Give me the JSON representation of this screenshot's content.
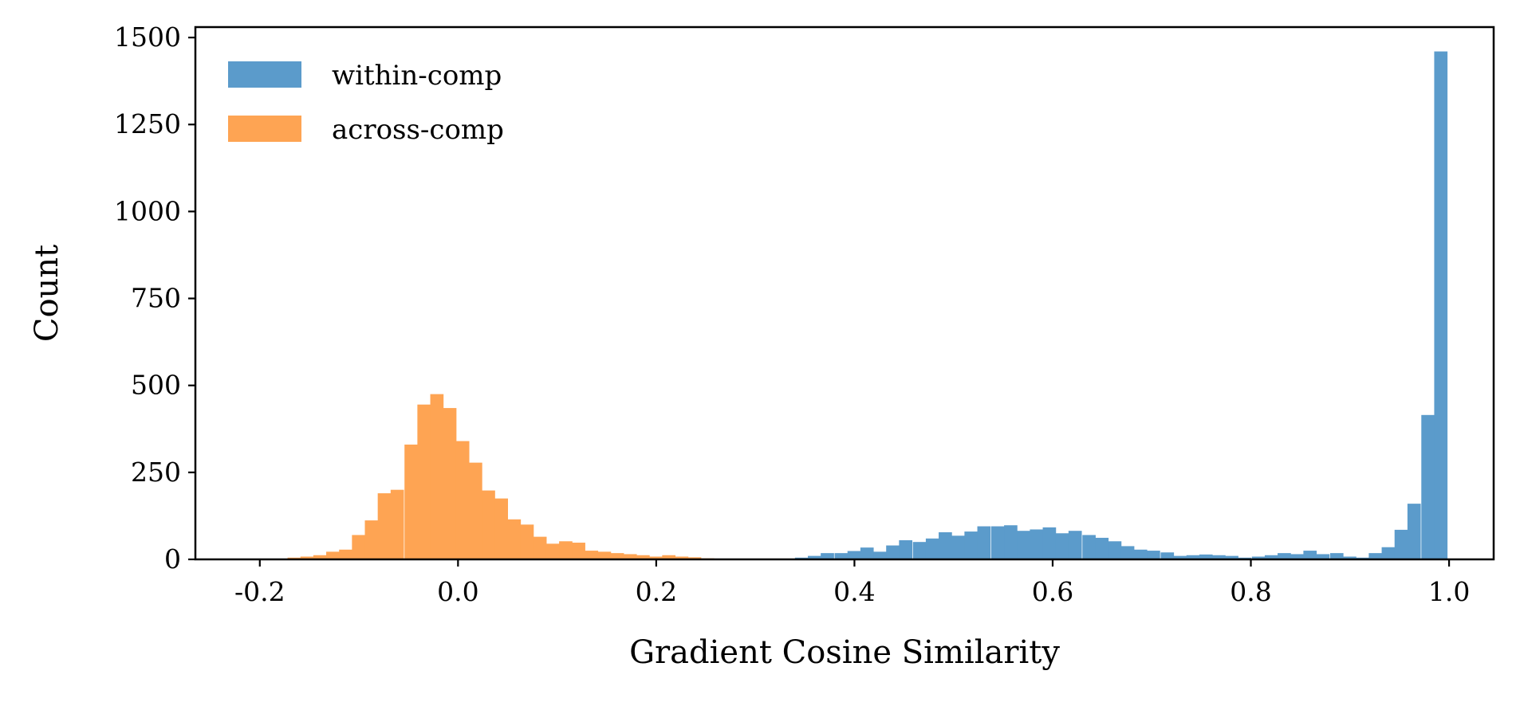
{
  "chart_data": {
    "type": "bar",
    "xlabel": "Gradient Cosine Similarity",
    "ylabel": "Count",
    "xlim": [
      -0.265,
      1.045
    ],
    "ylim": [
      0,
      1530
    ],
    "x_ticks": [
      -0.2,
      0.0,
      0.2,
      0.4,
      0.6,
      0.8,
      1.0
    ],
    "x_tick_labels": [
      "-0.2",
      "0.0",
      "0.2",
      "0.4",
      "0.6",
      "0.8",
      "1.0"
    ],
    "y_ticks": [
      0,
      250,
      500,
      750,
      1000,
      1250,
      1500
    ],
    "y_tick_labels": [
      "0",
      "250",
      "500",
      "750",
      "1000",
      "1250",
      "1500"
    ],
    "grid": false,
    "legend_position": "top-left",
    "series": [
      {
        "name": "within-comp",
        "color": "#5b9bcb",
        "bin_width": 0.0131,
        "bins": [
          [
            0.34,
            5
          ],
          [
            0.353,
            10
          ],
          [
            0.366,
            18
          ],
          [
            0.38,
            18
          ],
          [
            0.393,
            24
          ],
          [
            0.406,
            34
          ],
          [
            0.419,
            22
          ],
          [
            0.432,
            40
          ],
          [
            0.445,
            55
          ],
          [
            0.459,
            50
          ],
          [
            0.472,
            60
          ],
          [
            0.485,
            78
          ],
          [
            0.498,
            68
          ],
          [
            0.511,
            80
          ],
          [
            0.524,
            95
          ],
          [
            0.538,
            95
          ],
          [
            0.551,
            98
          ],
          [
            0.564,
            82
          ],
          [
            0.577,
            86
          ],
          [
            0.59,
            92
          ],
          [
            0.603,
            75
          ],
          [
            0.616,
            82
          ],
          [
            0.63,
            70
          ],
          [
            0.643,
            62
          ],
          [
            0.656,
            52
          ],
          [
            0.669,
            38
          ],
          [
            0.682,
            28
          ],
          [
            0.695,
            25
          ],
          [
            0.709,
            20
          ],
          [
            0.722,
            10
          ],
          [
            0.735,
            12
          ],
          [
            0.748,
            14
          ],
          [
            0.761,
            12
          ],
          [
            0.774,
            10
          ],
          [
            0.787,
            5
          ],
          [
            0.801,
            8
          ],
          [
            0.814,
            12
          ],
          [
            0.827,
            18
          ],
          [
            0.84,
            15
          ],
          [
            0.853,
            25
          ],
          [
            0.866,
            15
          ],
          [
            0.88,
            18
          ],
          [
            0.893,
            8
          ],
          [
            0.906,
            5
          ],
          [
            0.919,
            18
          ],
          [
            0.932,
            35
          ],
          [
            0.945,
            85
          ],
          [
            0.958,
            160
          ],
          [
            0.972,
            415
          ],
          [
            0.985,
            1460
          ]
        ]
      },
      {
        "name": "across-comp",
        "color": "#fea453",
        "bin_width": 0.0131,
        "bins": [
          [
            -0.172,
            5
          ],
          [
            -0.159,
            8
          ],
          [
            -0.146,
            12
          ],
          [
            -0.133,
            22
          ],
          [
            -0.12,
            28
          ],
          [
            -0.107,
            70
          ],
          [
            -0.094,
            112
          ],
          [
            -0.081,
            190
          ],
          [
            -0.068,
            200
          ],
          [
            -0.054,
            330
          ],
          [
            -0.041,
            445
          ],
          [
            -0.028,
            475
          ],
          [
            -0.015,
            435
          ],
          [
            -0.002,
            340
          ],
          [
            0.011,
            278
          ],
          [
            0.024,
            198
          ],
          [
            0.037,
            175
          ],
          [
            0.05,
            115
          ],
          [
            0.063,
            100
          ],
          [
            0.076,
            65
          ],
          [
            0.089,
            45
          ],
          [
            0.102,
            52
          ],
          [
            0.115,
            48
          ],
          [
            0.128,
            25
          ],
          [
            0.141,
            22
          ],
          [
            0.154,
            18
          ],
          [
            0.167,
            15
          ],
          [
            0.18,
            12
          ],
          [
            0.193,
            8
          ],
          [
            0.206,
            12
          ],
          [
            0.219,
            8
          ],
          [
            0.232,
            6
          ],
          [
            0.245,
            3
          ],
          [
            0.258,
            2
          ]
        ]
      }
    ]
  }
}
